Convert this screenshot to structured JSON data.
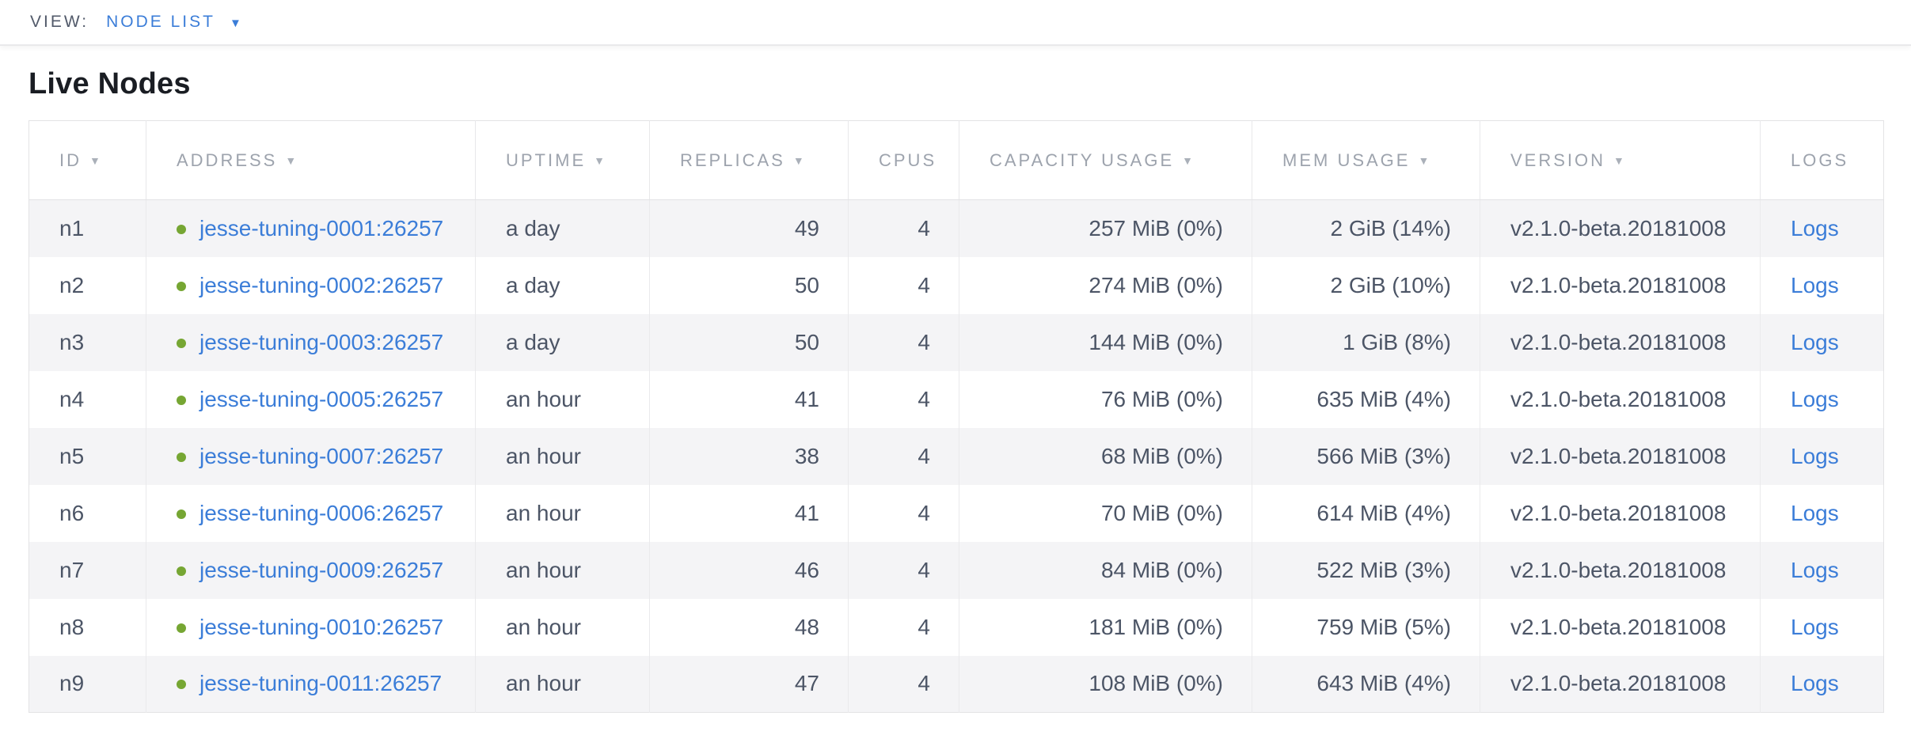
{
  "view_bar": {
    "label": "VIEW:",
    "selected": "NODE LIST",
    "dropdown_icon": "▼"
  },
  "page": {
    "title": "Live Nodes"
  },
  "colors": {
    "accent_blue": "#3b7dd8",
    "live_status_green": "#76a633",
    "header_gray": "#9da3ad",
    "cell_text": "#4c5566",
    "row_stripe": "#f4f4f6"
  },
  "table": {
    "columns": [
      {
        "key": "id",
        "label": "ID",
        "sort_icon": "▼"
      },
      {
        "key": "address",
        "label": "ADDRESS",
        "sort_icon": "▼"
      },
      {
        "key": "uptime",
        "label": "UPTIME",
        "sort_icon": "▼"
      },
      {
        "key": "replicas",
        "label": "REPLICAS",
        "sort_icon": "▼"
      },
      {
        "key": "cpus",
        "label": "CPUS",
        "sort_icon": ""
      },
      {
        "key": "capacity",
        "label": "CAPACITY USAGE",
        "sort_icon": "▼"
      },
      {
        "key": "mem",
        "label": "MEM USAGE",
        "sort_icon": "▼"
      },
      {
        "key": "version",
        "label": "VERSION",
        "sort_icon": "▼"
      },
      {
        "key": "logs",
        "label": "LOGS",
        "sort_icon": ""
      }
    ],
    "rows": [
      {
        "id": "n1",
        "address": "jesse-tuning-0001:26257",
        "uptime": "a day",
        "replicas": "49",
        "cpus": "4",
        "capacity": "257 MiB (0%)",
        "mem": "2 GiB (14%)",
        "version": "v2.1.0-beta.20181008",
        "logs": "Logs"
      },
      {
        "id": "n2",
        "address": "jesse-tuning-0002:26257",
        "uptime": "a day",
        "replicas": "50",
        "cpus": "4",
        "capacity": "274 MiB (0%)",
        "mem": "2 GiB (10%)",
        "version": "v2.1.0-beta.20181008",
        "logs": "Logs"
      },
      {
        "id": "n3",
        "address": "jesse-tuning-0003:26257",
        "uptime": "a day",
        "replicas": "50",
        "cpus": "4",
        "capacity": "144 MiB (0%)",
        "mem": "1 GiB (8%)",
        "version": "v2.1.0-beta.20181008",
        "logs": "Logs"
      },
      {
        "id": "n4",
        "address": "jesse-tuning-0005:26257",
        "uptime": "an hour",
        "replicas": "41",
        "cpus": "4",
        "capacity": "76 MiB (0%)",
        "mem": "635 MiB (4%)",
        "version": "v2.1.0-beta.20181008",
        "logs": "Logs"
      },
      {
        "id": "n5",
        "address": "jesse-tuning-0007:26257",
        "uptime": "an hour",
        "replicas": "38",
        "cpus": "4",
        "capacity": "68 MiB (0%)",
        "mem": "566 MiB (3%)",
        "version": "v2.1.0-beta.20181008",
        "logs": "Logs"
      },
      {
        "id": "n6",
        "address": "jesse-tuning-0006:26257",
        "uptime": "an hour",
        "replicas": "41",
        "cpus": "4",
        "capacity": "70 MiB (0%)",
        "mem": "614 MiB (4%)",
        "version": "v2.1.0-beta.20181008",
        "logs": "Logs"
      },
      {
        "id": "n7",
        "address": "jesse-tuning-0009:26257",
        "uptime": "an hour",
        "replicas": "46",
        "cpus": "4",
        "capacity": "84 MiB (0%)",
        "mem": "522 MiB (3%)",
        "version": "v2.1.0-beta.20181008",
        "logs": "Logs"
      },
      {
        "id": "n8",
        "address": "jesse-tuning-0010:26257",
        "uptime": "an hour",
        "replicas": "48",
        "cpus": "4",
        "capacity": "181 MiB (0%)",
        "mem": "759 MiB (5%)",
        "version": "v2.1.0-beta.20181008",
        "logs": "Logs"
      },
      {
        "id": "n9",
        "address": "jesse-tuning-0011:26257",
        "uptime": "an hour",
        "replicas": "47",
        "cpus": "4",
        "capacity": "108 MiB (0%)",
        "mem": "643 MiB (4%)",
        "version": "v2.1.0-beta.20181008",
        "logs": "Logs"
      }
    ]
  }
}
